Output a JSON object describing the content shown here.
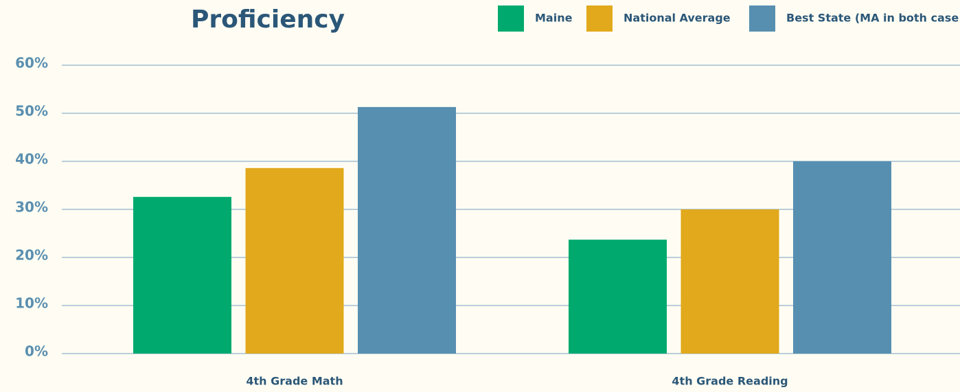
{
  "chart_data": {
    "type": "bar",
    "title": "Proficiency",
    "categories": [
      "4th Grade Math",
      "4th Grade Reading"
    ],
    "series": [
      {
        "name": "Maine",
        "color": "#00aa6e",
        "values": [
          32.6,
          23.7
        ]
      },
      {
        "name": "National Average",
        "color": "#e1a91b",
        "values": [
          38.6,
          30
        ]
      },
      {
        "name": "Best State (MA in both case",
        "color": "#578fb0",
        "values": [
          51.3,
          40
        ]
      }
    ],
    "ylim": [
      0,
      60
    ],
    "yticks": [
      {
        "value": 0,
        "label": "0%"
      },
      {
        "value": 10,
        "label": "10%"
      },
      {
        "value": 20,
        "label": "20%"
      },
      {
        "value": 30,
        "label": "30%"
      },
      {
        "value": 40,
        "label": "40%"
      },
      {
        "value": 50,
        "label": "50%"
      },
      {
        "value": 60,
        "label": "60%"
      }
    ],
    "grid": true,
    "legend": "top-right"
  }
}
